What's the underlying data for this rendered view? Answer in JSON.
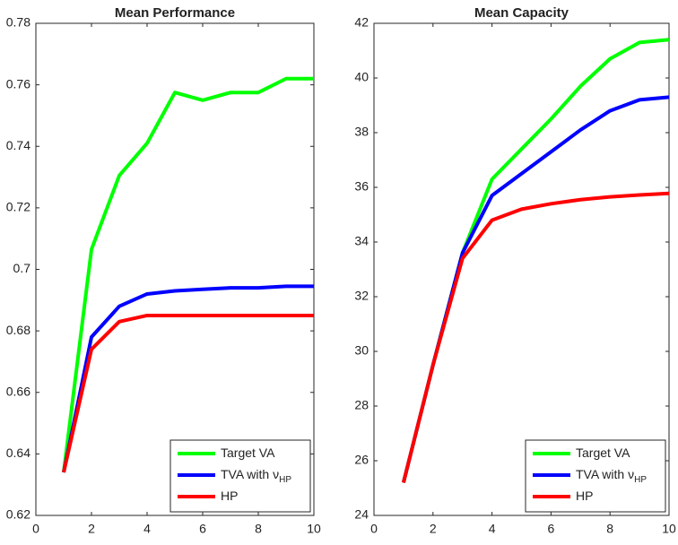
{
  "chart_data": [
    {
      "type": "line",
      "title": "Mean Performance",
      "x": [
        1,
        2,
        3,
        4,
        5,
        6,
        7,
        8,
        9,
        10
      ],
      "series": [
        {
          "name": "Target VA",
          "color": "#00ff00",
          "values": [
            0.634,
            0.7065,
            0.7305,
            0.741,
            0.7575,
            0.755,
            0.7575,
            0.7575,
            0.762,
            0.762
          ]
        },
        {
          "name": "TVA with ν",
          "subscript": "HP",
          "color": "#0000ff",
          "values": [
            0.634,
            0.678,
            0.688,
            0.692,
            0.693,
            0.6935,
            0.694,
            0.694,
            0.6945,
            0.6945
          ]
        },
        {
          "name": "HP",
          "color": "#ff0000",
          "values": [
            0.634,
            0.674,
            0.683,
            0.685,
            0.685,
            0.685,
            0.685,
            0.685,
            0.685,
            0.685
          ]
        }
      ],
      "xlim": [
        0,
        10
      ],
      "xticks": [
        0,
        2,
        4,
        6,
        8,
        10
      ],
      "ylim": [
        0.62,
        0.78
      ],
      "yticks": [
        0.62,
        0.64,
        0.66,
        0.68,
        0.7,
        0.72,
        0.74,
        0.76,
        0.78
      ],
      "legend": "lower right"
    },
    {
      "type": "line",
      "title": "Mean Capacity",
      "x": [
        1,
        2,
        3,
        4,
        5,
        6,
        7,
        8,
        9,
        10
      ],
      "series": [
        {
          "name": "Target VA",
          "color": "#00ff00",
          "values": [
            25.2,
            29.5,
            33.6,
            36.3,
            37.4,
            38.5,
            39.7,
            40.7,
            41.3,
            41.4
          ]
        },
        {
          "name": "TVA with ν",
          "subscript": "HP",
          "color": "#0000ff",
          "values": [
            25.2,
            29.5,
            33.6,
            35.7,
            36.5,
            37.3,
            38.1,
            38.8,
            39.2,
            39.3
          ]
        },
        {
          "name": "HP",
          "color": "#ff0000",
          "values": [
            25.2,
            29.5,
            33.4,
            34.8,
            35.2,
            35.4,
            35.55,
            35.65,
            35.72,
            35.78
          ]
        }
      ],
      "xlim": [
        0,
        10
      ],
      "xticks": [
        0,
        2,
        4,
        6,
        8,
        10
      ],
      "ylim": [
        24,
        42
      ],
      "yticks": [
        24,
        26,
        28,
        30,
        32,
        34,
        36,
        38,
        40,
        42
      ],
      "legend": "lower right"
    }
  ]
}
